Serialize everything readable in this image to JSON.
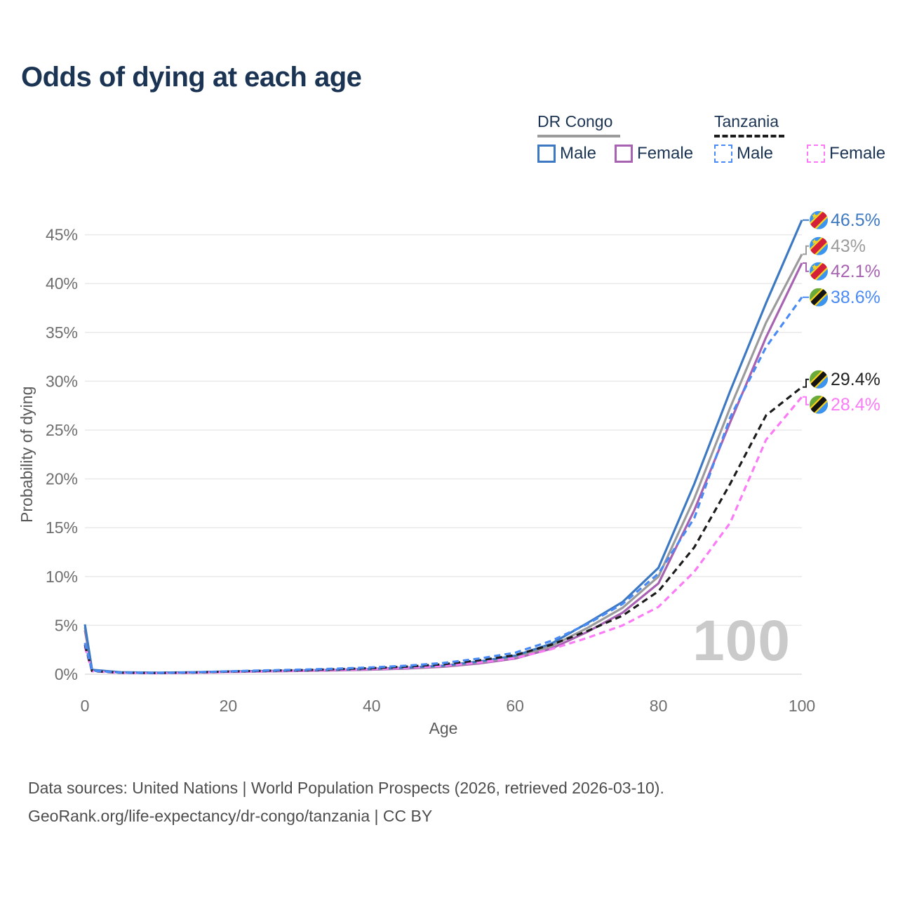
{
  "title": "Odds of dying at each age",
  "legend": {
    "groups": [
      {
        "id": "drc",
        "label": "DR Congo",
        "items": [
          {
            "id": "drc-male",
            "label": "Male"
          },
          {
            "id": "drc-female",
            "label": "Female"
          }
        ]
      },
      {
        "id": "tz",
        "label": "Tanzania",
        "items": [
          {
            "id": "tz-male",
            "label": "Male"
          },
          {
            "id": "tz-female",
            "label": "Female"
          }
        ]
      }
    ]
  },
  "footer": {
    "line1": "Data sources: United Nations | World Population Prospects (2026, retrieved 2026-03-10).",
    "line2": "GeoRank.org/life-expectancy/dr-congo/tanzania | CC BY"
  },
  "chart_data": {
    "type": "line",
    "title": "Odds of dying at each age",
    "xlabel": "Age",
    "ylabel": "Probability of dying",
    "xlim": [
      0,
      100
    ],
    "ylim": [
      0,
      47
    ],
    "x_ticks": [
      0,
      20,
      40,
      60,
      80,
      100
    ],
    "y_ticks": [
      0,
      5,
      10,
      15,
      20,
      25,
      30,
      35,
      40,
      45
    ],
    "grid": "horizontal",
    "legend_position": "top-right",
    "watermark": "100",
    "ages": [
      0,
      1,
      5,
      10,
      15,
      20,
      25,
      30,
      35,
      40,
      45,
      50,
      55,
      60,
      65,
      70,
      75,
      80,
      85,
      90,
      95,
      100
    ],
    "series": [
      {
        "id": "drc-male",
        "name": "DR Congo Male",
        "color": "#3d79c2",
        "label_color": "#3d79c2",
        "dash": "solid",
        "flag": "drc",
        "end_label": "46.5%",
        "values": [
          5.1,
          0.45,
          0.2,
          0.15,
          0.2,
          0.28,
          0.33,
          0.38,
          0.45,
          0.55,
          0.68,
          0.88,
          1.3,
          1.9,
          3.1,
          5.2,
          7.4,
          10.9,
          19.5,
          29.0,
          38.0,
          46.5
        ]
      },
      {
        "id": "drc-both",
        "name": "DR Congo",
        "color": "#9b9b9b",
        "label_color": "#9b9b9b",
        "dash": "solid",
        "flag": "drc",
        "end_label": "43%",
        "values": [
          4.8,
          0.42,
          0.19,
          0.14,
          0.19,
          0.26,
          0.31,
          0.36,
          0.42,
          0.51,
          0.63,
          0.82,
          1.2,
          1.75,
          2.85,
          4.7,
          6.8,
          10.0,
          18.0,
          27.3,
          36.0,
          43.0
        ]
      },
      {
        "id": "drc-female",
        "name": "DR Congo Female",
        "color": "#a763b2",
        "label_color": "#a763b2",
        "dash": "solid",
        "flag": "drc",
        "end_label": "42.1%",
        "values": [
          4.5,
          0.4,
          0.18,
          0.13,
          0.17,
          0.23,
          0.28,
          0.33,
          0.39,
          0.47,
          0.58,
          0.76,
          1.1,
          1.6,
          2.6,
          4.3,
          6.3,
          9.3,
          16.8,
          25.8,
          34.5,
          42.1
        ]
      },
      {
        "id": "tz-male",
        "name": "Tanzania Male",
        "color": "#4a8af4",
        "label_color": "#4a8af4",
        "dash": "dashed",
        "flag": "tz",
        "end_label": "38.6%",
        "values": [
          3.2,
          0.36,
          0.16,
          0.13,
          0.19,
          0.3,
          0.39,
          0.47,
          0.57,
          0.7,
          0.88,
          1.15,
          1.6,
          2.2,
          3.4,
          5.1,
          7.2,
          10.3,
          16.0,
          26.3,
          33.5,
          38.6
        ]
      },
      {
        "id": "tz-both",
        "name": "Tanzania",
        "color": "#1c1c1c",
        "label_color": "#222222",
        "dash": "dashed",
        "flag": "tz",
        "end_label": "29.4%",
        "values": [
          3.0,
          0.33,
          0.15,
          0.12,
          0.17,
          0.27,
          0.35,
          0.42,
          0.51,
          0.62,
          0.78,
          1.02,
          1.42,
          1.95,
          3.0,
          4.4,
          6.0,
          8.5,
          13.0,
          19.5,
          26.5,
          29.4
        ]
      },
      {
        "id": "tz-female",
        "name": "Tanzania Female",
        "color": "#fb7bf7",
        "label_color": "#fb7bf7",
        "dash": "dashed",
        "flag": "tz",
        "end_label": "28.4%",
        "values": [
          2.8,
          0.3,
          0.13,
          0.1,
          0.14,
          0.22,
          0.29,
          0.35,
          0.43,
          0.52,
          0.66,
          0.86,
          1.2,
          1.65,
          2.55,
          3.7,
          5.0,
          6.9,
          10.5,
          15.5,
          24.0,
          28.4
        ]
      }
    ],
    "flags": {
      "drc": {
        "field": "#3b94ef",
        "stripe": "#d41f3a",
        "fimbriation": "#f7d51d"
      },
      "tz": {
        "green": "#6aaa3a",
        "blue": "#3b94ef",
        "stripe": "#141414",
        "fimbriation": "#fcd116"
      }
    }
  }
}
